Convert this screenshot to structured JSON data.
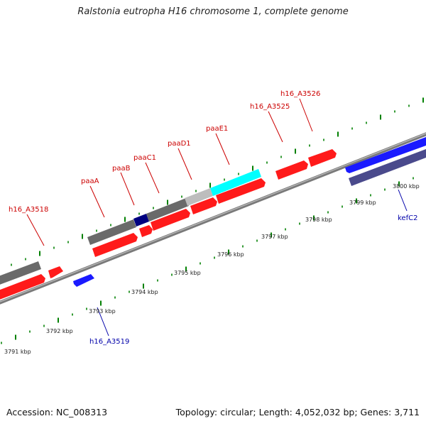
{
  "title": "Ralstonia eutropha H16 chromosome 1, complete genome",
  "footer": {
    "accession": "Accession: NC_008313",
    "summary": "Topology: circular; Length: 4,052,032 bp; Genes: 3,711"
  },
  "colors": {
    "forward_gene": "#ff1a1a",
    "reverse_gene": "#1a1aff",
    "gray_feature": "#666666",
    "light_gray_feature": "#bbbbbb",
    "dark_blue_feature": "#000080",
    "cyan_feature": "#00ffff",
    "slate_feature": "#4a4a8c",
    "label_red": "#cc0000",
    "label_blue": "#0000aa",
    "tick_green": "#008000"
  },
  "kbp_labels": [
    "3791 kbp",
    "3792 kbp",
    "3793 kbp",
    "3794 kbp",
    "3795 kbp",
    "3796 kbp",
    "3797 kbp",
    "3798 kbp",
    "3799 kbp",
    "3800 kbp"
  ],
  "gene_labels": [
    {
      "text": "h16_A3518",
      "strand": "forward"
    },
    {
      "text": "paaA",
      "strand": "forward"
    },
    {
      "text": "paaB",
      "strand": "forward"
    },
    {
      "text": "paaC1",
      "strand": "forward"
    },
    {
      "text": "paaD1",
      "strand": "forward"
    },
    {
      "text": "paaE1",
      "strand": "forward"
    },
    {
      "text": "h16_A3525",
      "strand": "forward"
    },
    {
      "text": "h16_A3526",
      "strand": "forward"
    },
    {
      "text": "h16_A3519",
      "strand": "reverse"
    },
    {
      "text": "kefC2",
      "strand": "reverse"
    }
  ]
}
